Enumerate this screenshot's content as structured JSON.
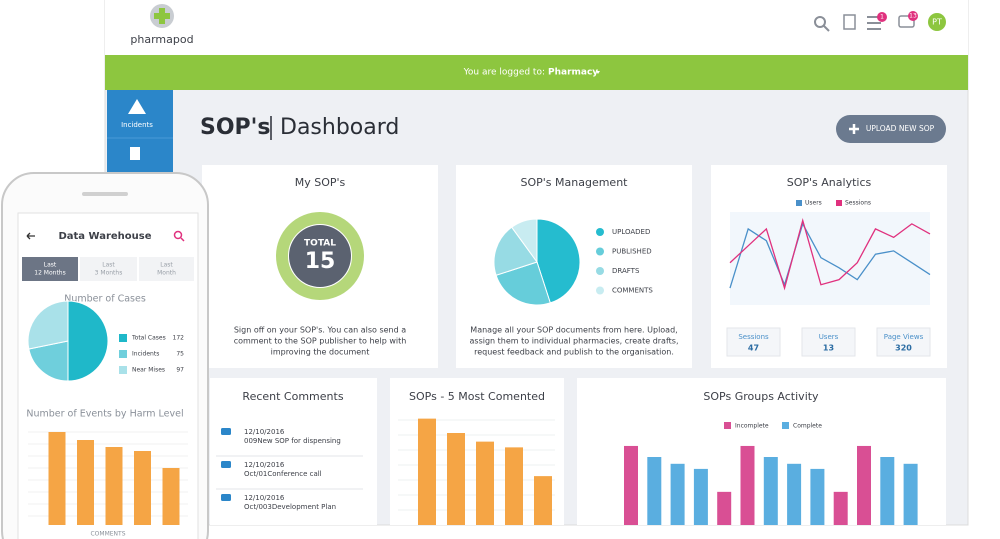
{
  "header": {
    "logo": "pharmapod",
    "tasks_badge": "1",
    "messages_badge": "13",
    "avatar": "PT"
  },
  "banner": {
    "prefix": "You are logged to:",
    "pharmacy": "Pharmacy"
  },
  "sidebar": {
    "items": [
      "Incidents"
    ]
  },
  "page": {
    "title": "SOP's",
    "subtitle": "Dashboard",
    "upload_button": "UPLOAD NEW SOP"
  },
  "my_sops": {
    "title": "My SOP's",
    "total_label": "TOTAL",
    "total": 15,
    "description": [
      "Sign off on your SOP's. You can also send a",
      "comment to the SOP publisher to help with",
      "improving the document"
    ]
  },
  "management": {
    "title": "SOP's Management",
    "type": "pie",
    "categories": [
      "UPLOADED",
      "PUBLISHED",
      "DRAFTS",
      "COMMENTS"
    ],
    "values": [
      45,
      25,
      20,
      10
    ],
    "colors": [
      "#25bccf",
      "#66cdda",
      "#97dbe4",
      "#c8ecf1"
    ],
    "description": [
      "Manage all your SOP documents from here. Upload,",
      "assign them to individual pharmacies, create drafts,",
      "request feedback and publish to the organisation."
    ]
  },
  "analytics": {
    "title": "SOP's Analytics",
    "type": "line",
    "ylim": [
      0,
      5.5
    ],
    "series": [
      {
        "name": "Users",
        "color": "#4a90c9",
        "values": [
          1,
          4.5,
          3.8,
          1.2,
          4.8,
          2.8,
          2.2,
          1.5,
          3,
          3.2,
          2.5,
          1.8
        ]
      },
      {
        "name": "Sessions",
        "color": "#e0317e",
        "values": [
          2.5,
          3.5,
          4.5,
          1,
          5,
          1.2,
          1.5,
          2.5,
          4.5,
          4,
          4.8,
          4.2
        ]
      }
    ],
    "stats": [
      {
        "label": "Sessions",
        "value": 47
      },
      {
        "label": "Users",
        "value": 13
      },
      {
        "label": "Page Views",
        "value": 320
      }
    ]
  },
  "recent_comments": {
    "title": "Recent Comments",
    "items": [
      {
        "date": "12/10/2016",
        "text": "009New SOP for dispensing"
      },
      {
        "date": "12/10/2016",
        "text": "Oct/01Conference call"
      },
      {
        "date": "12/10/2016",
        "text": "Oct/003Development Plan"
      }
    ]
  },
  "most_commented": {
    "title": "SOPs - 5 Most Comented",
    "type": "bar",
    "ylim": [
      0,
      8
    ],
    "color": "#f5a545",
    "values": [
      7.4,
      6.4,
      5.8,
      5.4,
      3.4
    ]
  },
  "groups_activity": {
    "title": "SOPs Groups Activity",
    "type": "bar",
    "ylim": [
      0,
      100
    ],
    "series": [
      {
        "name": "Incomplete",
        "color": "#d94f94",
        "values": [
          93,
          null,
          null,
          null,
          39,
          93,
          null,
          null,
          null,
          39,
          93,
          null,
          null
        ]
      },
      {
        "name": "Complete",
        "color": "#5aaee0",
        "values": [
          null,
          80,
          72,
          66,
          null,
          null,
          80,
          72,
          66,
          null,
          null,
          80,
          72
        ]
      }
    ]
  },
  "phone": {
    "title": "Data Warehouse",
    "tabs": [
      [
        "Last",
        "12 Months"
      ],
      [
        "Last",
        "3 Months"
      ],
      [
        "Last",
        "Month"
      ]
    ],
    "cases": {
      "title": "Number of Cases",
      "type": "pie",
      "categories": [
        "Total Cases",
        "Incidents",
        "Near Mises"
      ],
      "values": [
        172,
        75,
        97
      ],
      "colors": [
        "#1fb8c9",
        "#6fcfdc",
        "#a9e1e9"
      ]
    },
    "events": {
      "title": "Number of Events by Harm Level",
      "type": "bar",
      "ylim": [
        0,
        100
      ],
      "color": "#f5a545",
      "values": [
        93,
        85,
        78,
        74,
        57
      ]
    },
    "footer": "COMMENTS"
  }
}
